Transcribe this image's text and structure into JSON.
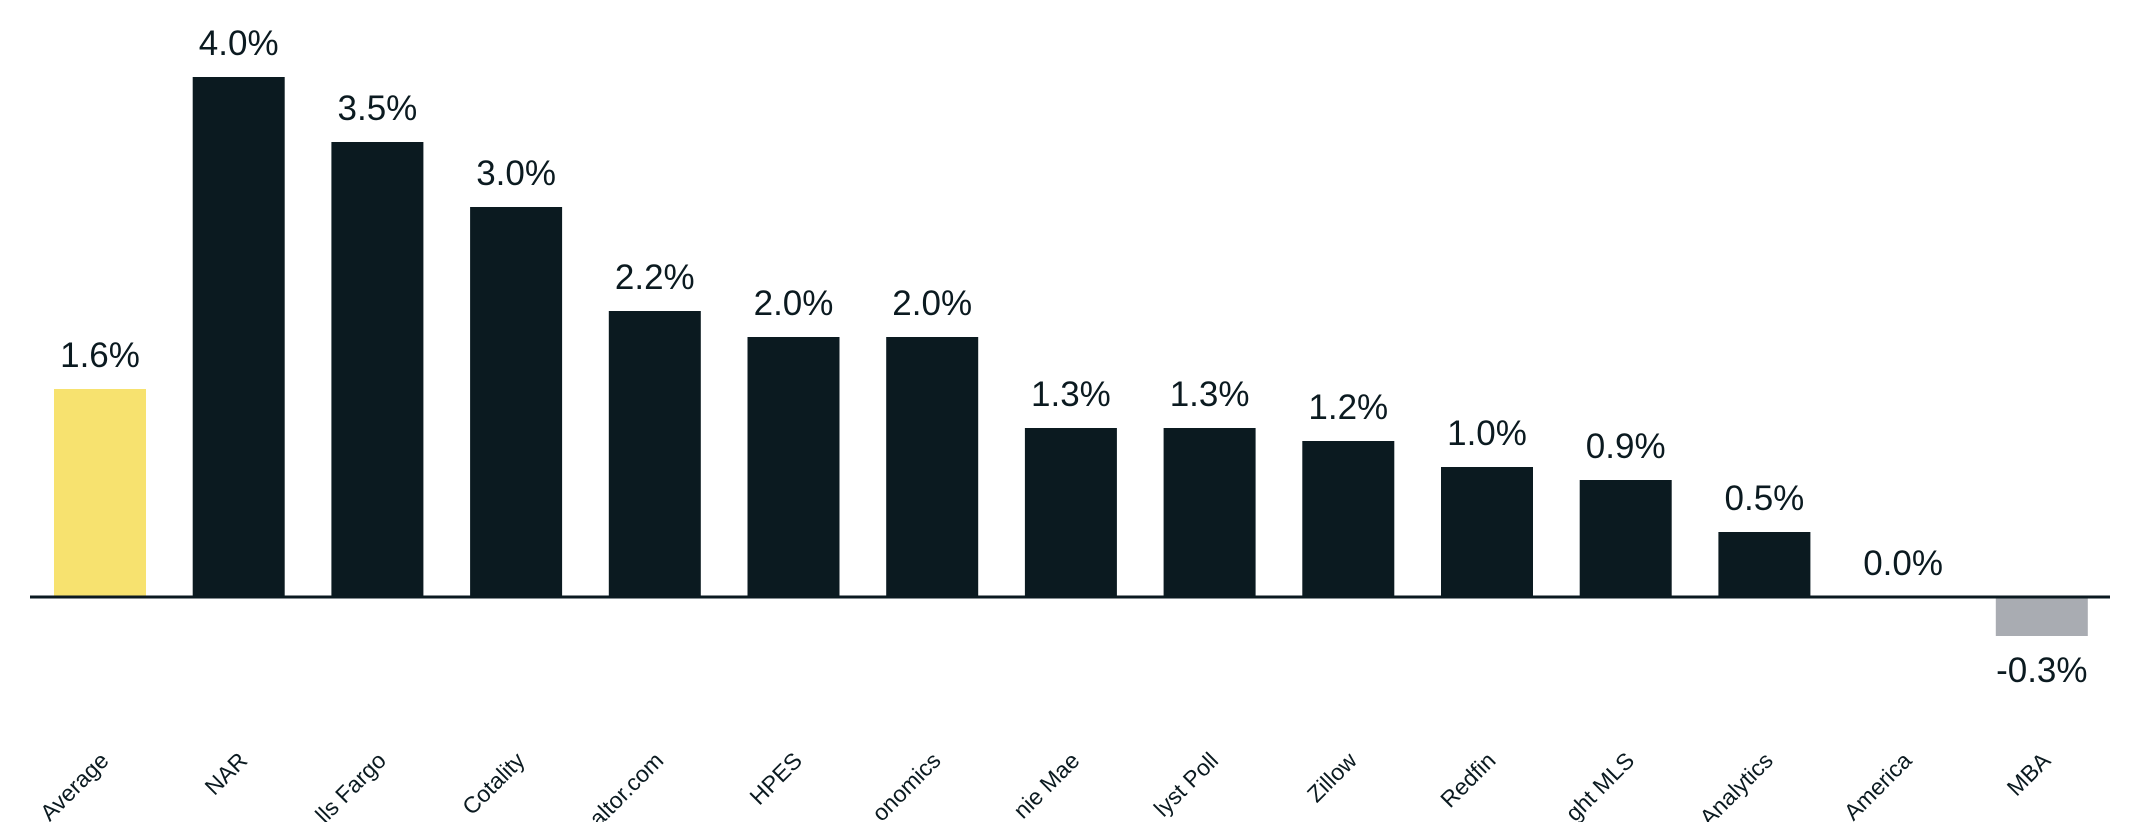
{
  "chart_data": {
    "type": "bar",
    "categories": [
      "Average",
      "NAR",
      "lls Fargo",
      "Cotality",
      "altor.com",
      "HPES",
      "onomics",
      "nie Mae",
      "lyst Poll",
      "Zillow",
      "Redfin",
      "ght MLS",
      "Analytics",
      "America",
      "MBA"
    ],
    "values": [
      1.6,
      4.0,
      3.5,
      3.0,
      2.2,
      2.0,
      2.0,
      1.3,
      1.3,
      1.2,
      1.0,
      0.9,
      0.5,
      0.0,
      -0.3
    ],
    "value_labels": [
      "1.6%",
      "4.0%",
      "3.5%",
      "3.0%",
      "2.2%",
      "2.0%",
      "2.0%",
      "1.3%",
      "1.3%",
      "1.2%",
      "1.0%",
      "0.9%",
      "0.5%",
      "0.0%",
      "-0.3%"
    ],
    "unit": "%",
    "title": "",
    "xlabel": "",
    "ylabel": "",
    "ylim": [
      -0.3,
      4.0
    ],
    "grid": false,
    "legend": "none",
    "colors": {
      "average": "#f7e26f",
      "positive": "#0b1a20",
      "negative": "#a9acb2",
      "axis": "#0b1a20"
    }
  }
}
